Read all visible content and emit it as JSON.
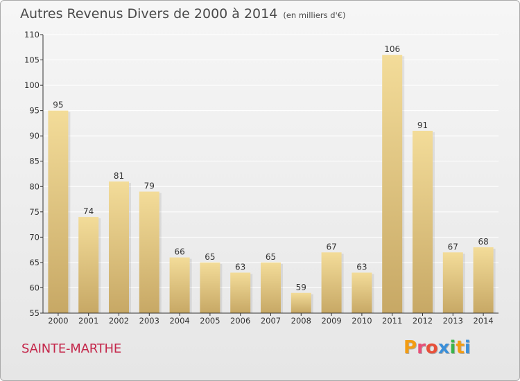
{
  "header": {
    "title": "Autres Revenus Divers de 2000 à 2014",
    "unit": "(en milliers d'€)"
  },
  "footer": {
    "town": "SAINTE-MARTHE",
    "logo": "Proxiti",
    "logo_colors": [
      "#f39c12",
      "#e94e77",
      "#e8503a",
      "#3a8fd9",
      "#3ab54a",
      "#f39c12",
      "#3a8fd9"
    ]
  },
  "colors": {
    "bar_light": "#f3dc99",
    "bar_dark": "#c7a865",
    "grid": "#ffffff",
    "axis": "#333333",
    "text": "#333333",
    "town": "#c4264a"
  },
  "chart_data": {
    "type": "bar",
    "categories": [
      "2000",
      "2001",
      "2002",
      "2003",
      "2004",
      "2005",
      "2006",
      "2007",
      "2008",
      "2009",
      "2010",
      "2011",
      "2012",
      "2013",
      "2014"
    ],
    "values": [
      95,
      74,
      81,
      79,
      66,
      65,
      63,
      65,
      59,
      67,
      63,
      106,
      91,
      67,
      68
    ],
    "ylim": [
      55,
      110
    ],
    "yticks": [
      55,
      60,
      65,
      70,
      75,
      80,
      85,
      90,
      95,
      100,
      105,
      110
    ],
    "grid": true
  }
}
